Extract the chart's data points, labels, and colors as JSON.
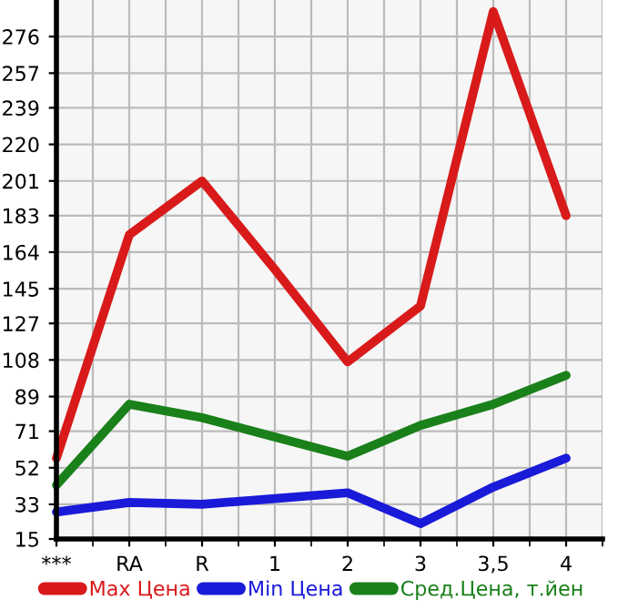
{
  "chart_data": {
    "type": "line",
    "categories": [
      "***",
      "RA",
      "R",
      "1",
      "2",
      "3",
      "3,5",
      "4"
    ],
    "series": [
      {
        "name": "Max Цена",
        "color": "#d91a1a",
        "values": [
          57,
          173,
          201,
          155,
          107,
          136,
          289,
          183
        ]
      },
      {
        "name": "Min Цена",
        "color": "#1a1ad9",
        "values": [
          29,
          34,
          33,
          36,
          39,
          23,
          42,
          57
        ]
      },
      {
        "name": "Сред.Цена, т.йен",
        "color": "#1a801a",
        "values": [
          43,
          85,
          78,
          68,
          58,
          74,
          85,
          100
        ]
      }
    ],
    "ylim": [
      15,
      295
    ],
    "yticks": [
      15,
      33,
      52,
      71,
      89,
      108,
      127,
      145,
      164,
      183,
      201,
      220,
      239,
      257,
      276
    ],
    "grid": true,
    "legend": "bottom",
    "marker": "none",
    "line_style": "solid"
  }
}
